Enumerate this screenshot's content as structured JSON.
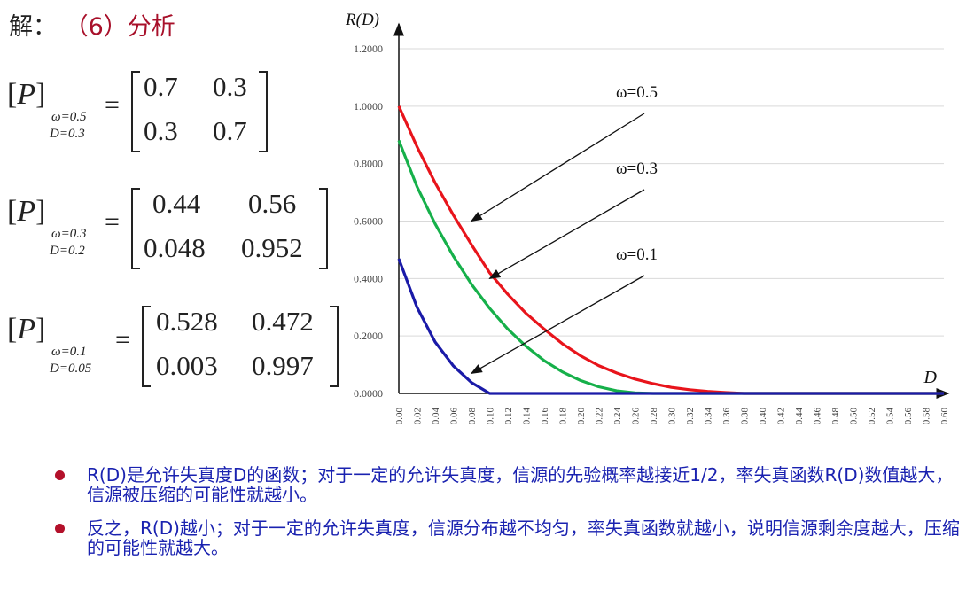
{
  "heading": {
    "prefix": "解：",
    "label": "（6）分析"
  },
  "matrices": [
    {
      "symbol": "P",
      "omega_label": "ω=0.5",
      "d_label": "D=0.3",
      "rows": [
        [
          "0.7",
          "0.3"
        ],
        [
          "0.3",
          "0.7"
        ]
      ]
    },
    {
      "symbol": "P",
      "omega_label": "ω=0.3",
      "d_label": "D=0.2",
      "rows": [
        [
          "0.44",
          "0.56"
        ],
        [
          "0.048",
          "0.952"
        ]
      ]
    },
    {
      "symbol": "P",
      "omega_label": "ω=0.1",
      "d_label": "D=0.05",
      "rows": [
        [
          "0.528",
          "0.472"
        ],
        [
          "0.003",
          "0.997"
        ]
      ]
    }
  ],
  "chart_data": {
    "type": "line",
    "title": "",
    "ylabel": "R(D)",
    "xlabel": "D",
    "ylim": [
      0,
      1.2
    ],
    "xlim": [
      0,
      0.6
    ],
    "y_ticks": [
      "0.0000",
      "0.2000",
      "0.4000",
      "0.6000",
      "0.8000",
      "1.0000",
      "1.2000"
    ],
    "x_ticks": [
      "0.00",
      "0.02",
      "0.04",
      "0.06",
      "0.08",
      "0.10",
      "0.12",
      "0.14",
      "0.16",
      "0.18",
      "0.20",
      "0.22",
      "0.24",
      "0.26",
      "0.28",
      "0.30",
      "0.32",
      "0.34",
      "0.36",
      "0.38",
      "0.40",
      "0.42",
      "0.44",
      "0.46",
      "0.48",
      "0.50",
      "0.52",
      "0.54",
      "0.56",
      "0.58",
      "0.60"
    ],
    "grid": true,
    "x": [
      0.0,
      0.02,
      0.04,
      0.06,
      0.08,
      0.1,
      0.12,
      0.14,
      0.16,
      0.18,
      0.2,
      0.22,
      0.24,
      0.26,
      0.28,
      0.3,
      0.32,
      0.34,
      0.36,
      0.38,
      0.4,
      0.42,
      0.44,
      0.46,
      0.48,
      0.5,
      0.52,
      0.54,
      0.56,
      0.58,
      0.6
    ],
    "series": [
      {
        "name": "ω=0.5",
        "color": "#e8141b",
        "values": [
          1.0,
          0.859,
          0.733,
          0.621,
          0.518,
          0.42,
          0.345,
          0.279,
          0.224,
          0.173,
          0.131,
          0.097,
          0.071,
          0.05,
          0.034,
          0.021,
          0.013,
          0.007,
          0.003,
          0.0,
          0.0,
          0.0,
          0.0,
          0.0,
          0.0,
          0.0,
          0.0,
          0.0,
          0.0,
          0.0,
          0.0
        ]
      },
      {
        "name": "ω=0.3",
        "color": "#16b04a",
        "values": [
          0.881,
          0.72,
          0.59,
          0.478,
          0.38,
          0.296,
          0.224,
          0.164,
          0.114,
          0.075,
          0.045,
          0.023,
          0.009,
          0.002,
          0.0,
          0.0,
          0.0,
          0.0,
          0.0,
          0.0,
          0.0,
          0.0,
          0.0,
          0.0,
          0.0,
          0.0,
          0.0,
          0.0,
          0.0,
          0.0,
          0.0
        ]
      },
      {
        "name": "ω=0.1",
        "color": "#1a1aa8",
        "values": [
          0.469,
          0.3,
          0.179,
          0.096,
          0.038,
          0.0,
          0.0,
          0.0,
          0.0,
          0.0,
          0.0,
          0.0,
          0.0,
          0.0,
          0.0,
          0.0,
          0.0,
          0.0,
          0.0,
          0.0,
          0.0,
          0.0,
          0.0,
          0.0,
          0.0,
          0.0,
          0.0,
          0.0,
          0.0,
          0.0,
          0.0
        ]
      }
    ],
    "annotations": [
      {
        "text": "ω=0.5",
        "target_x": 0.08,
        "target_y": 0.6
      },
      {
        "text": "ω=0.3",
        "target_x": 0.1,
        "target_y": 0.4
      },
      {
        "text": "ω=0.1",
        "target_x": 0.08,
        "target_y": 0.07
      }
    ]
  },
  "bullets": [
    {
      "text": "R(D)是允许失真度D的函数；对于一定的允许失真度，信源的先验概率越接近1/2，率失真函数R(D)数值越大，信源被压缩的可能性就越小。"
    },
    {
      "text": "反之，R(D)越小；对于一定的允许失真度，信源分布越不均匀，率失真函数就越小，说明信源剩余度越大，压缩的可能性就越大。"
    }
  ]
}
